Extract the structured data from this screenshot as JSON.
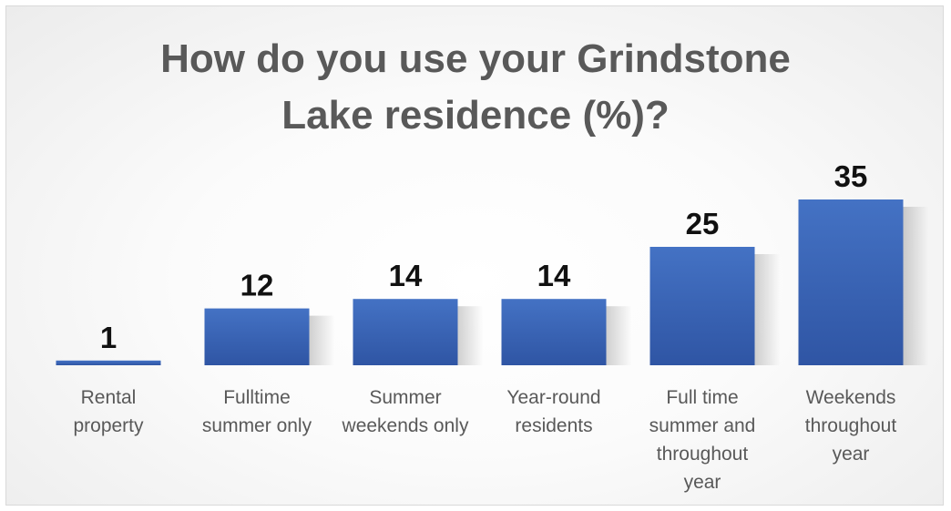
{
  "chart_data": {
    "type": "bar",
    "title_lines": [
      "How do you use your Grindstone",
      "Lake residence (%)?"
    ],
    "categories": [
      [
        "Rental",
        "property"
      ],
      [
        "Fulltime",
        "summer only"
      ],
      [
        "Summer",
        "weekends only"
      ],
      [
        "Year-round",
        "residents"
      ],
      [
        "Full time",
        "summer and",
        "throughout",
        "year"
      ],
      [
        "Weekends",
        "throughout",
        "year"
      ]
    ],
    "values": [
      1,
      12,
      14,
      14,
      25,
      35
    ],
    "value_labels": [
      "1",
      "12",
      "14",
      "14",
      "25",
      "35"
    ],
    "ylim": [
      0,
      35
    ],
    "grid": false,
    "legend": "none",
    "bar_color": "#4472c4",
    "bar_color_dark": "#2f55a4"
  }
}
